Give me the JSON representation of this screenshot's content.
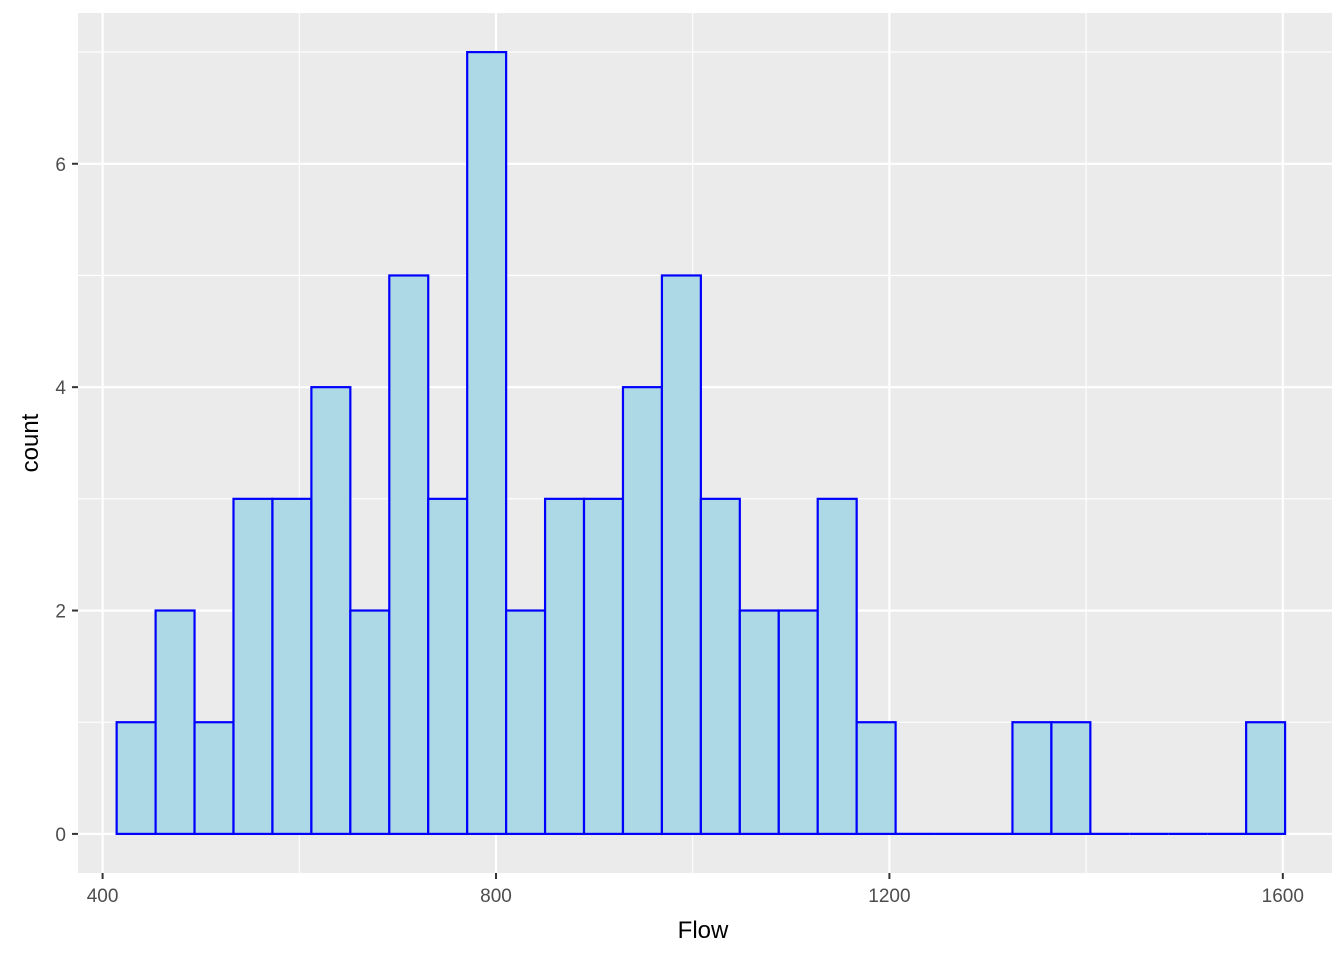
{
  "chart_data": {
    "type": "histogram",
    "xlabel": "Flow",
    "ylabel": "count",
    "x_ticks": [
      400,
      800,
      1200,
      1600
    ],
    "y_ticks": [
      0,
      2,
      4,
      6
    ],
    "xlim": [
      375,
      1650
    ],
    "ylim": [
      -0.35,
      7.35
    ],
    "grid": true,
    "bin_width": 39.6,
    "bins": [
      {
        "x0": 414.3,
        "x1": 453.9,
        "count": 1
      },
      {
        "x0": 453.9,
        "x1": 493.5,
        "count": 2
      },
      {
        "x0": 493.5,
        "x1": 533.1,
        "count": 1
      },
      {
        "x0": 533.1,
        "x1": 572.7,
        "count": 3
      },
      {
        "x0": 572.7,
        "x1": 612.3,
        "count": 3
      },
      {
        "x0": 612.3,
        "x1": 651.9,
        "count": 4
      },
      {
        "x0": 651.9,
        "x1": 691.5,
        "count": 2
      },
      {
        "x0": 691.5,
        "x1": 731.1,
        "count": 5
      },
      {
        "x0": 731.1,
        "x1": 770.7,
        "count": 3
      },
      {
        "x0": 770.7,
        "x1": 810.3,
        "count": 7
      },
      {
        "x0": 810.3,
        "x1": 849.9,
        "count": 2
      },
      {
        "x0": 849.9,
        "x1": 889.5,
        "count": 3
      },
      {
        "x0": 889.5,
        "x1": 929.1,
        "count": 3
      },
      {
        "x0": 929.1,
        "x1": 968.7,
        "count": 4
      },
      {
        "x0": 968.7,
        "x1": 1008.3,
        "count": 5
      },
      {
        "x0": 1008.3,
        "x1": 1047.9,
        "count": 3
      },
      {
        "x0": 1047.9,
        "x1": 1087.5,
        "count": 2
      },
      {
        "x0": 1087.5,
        "x1": 1127.1,
        "count": 2
      },
      {
        "x0": 1127.1,
        "x1": 1166.7,
        "count": 3
      },
      {
        "x0": 1166.7,
        "x1": 1206.3,
        "count": 1
      },
      {
        "x0": 1206.3,
        "x1": 1245.9,
        "count": 0
      },
      {
        "x0": 1245.9,
        "x1": 1285.5,
        "count": 0
      },
      {
        "x0": 1285.5,
        "x1": 1325.1,
        "count": 0
      },
      {
        "x0": 1325.1,
        "x1": 1364.7,
        "count": 1
      },
      {
        "x0": 1364.7,
        "x1": 1404.3,
        "count": 1
      },
      {
        "x0": 1404.3,
        "x1": 1443.9,
        "count": 0
      },
      {
        "x0": 1443.9,
        "x1": 1483.5,
        "count": 0
      },
      {
        "x0": 1483.5,
        "x1": 1523.1,
        "count": 0
      },
      {
        "x0": 1523.1,
        "x1": 1562.7,
        "count": 0
      },
      {
        "x0": 1562.7,
        "x1": 1602.3,
        "count": 1
      }
    ],
    "colors": {
      "bar_fill": "#add8e6",
      "bar_outline": "#0000ff",
      "panel_background": "#ebebeb",
      "grid_line": "#ffffff",
      "tick_text": "#4d4d4d",
      "axis_title_text": "#000000"
    }
  }
}
